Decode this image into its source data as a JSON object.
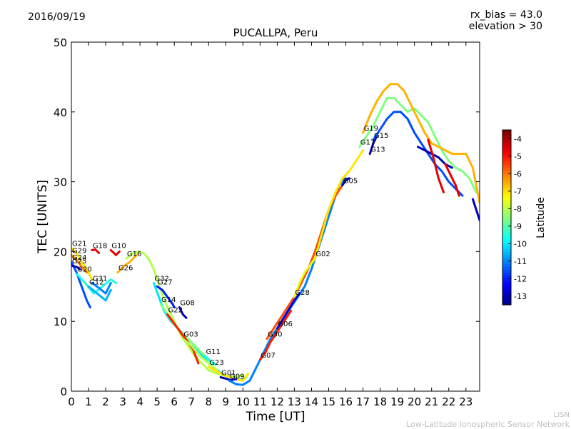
{
  "date": "2016/09/19",
  "header": {
    "rx_bias": "rx_bias = 43.0",
    "elevation": "elevation > 30"
  },
  "footer": {
    "line1": "LISN",
    "line2": "Low-Latitude Ionospheric Sensor Network"
  },
  "colorbar": {
    "label": "Latitude",
    "ticks": [
      -4,
      -5,
      -6,
      -7,
      -8,
      -9,
      -10,
      -11,
      -12,
      -13
    ],
    "range": [
      -13.5,
      -3.5
    ],
    "colormap": "jet"
  },
  "chart_data": {
    "type": "line",
    "title": "PUCALLPA, Peru",
    "xlabel": "Time [UT]",
    "ylabel": "TEC [UNITS]",
    "xlim": [
      0,
      23.8
    ],
    "ylim": [
      0,
      50
    ],
    "xticks": [
      0,
      1,
      2,
      3,
      4,
      5,
      6,
      7,
      8,
      9,
      10,
      11,
      12,
      13,
      14,
      15,
      16,
      17,
      18,
      19,
      20,
      21,
      22,
      23
    ],
    "yticks": [
      0,
      10,
      20,
      30,
      40,
      50
    ],
    "series": [
      {
        "name": "G21",
        "lat": -7.0,
        "x": [
          0.0,
          0.3,
          0.6,
          0.9,
          1.2
        ],
        "y": [
          20.5,
          19.8,
          18.5,
          17.5,
          16.0
        ]
      },
      {
        "name": "G29",
        "lat": -6.0,
        "x": [
          0.0,
          0.3,
          0.6,
          0.9
        ],
        "y": [
          19.5,
          18.8,
          17.8,
          17.0
        ]
      },
      {
        "name": "G24",
        "lat": -11.5,
        "x": [
          0.0,
          0.3,
          0.6,
          0.9,
          1.1
        ],
        "y": [
          18.5,
          17.0,
          15.0,
          13.0,
          12.0
        ]
      },
      {
        "name": "G25",
        "lat": -12.8,
        "x": [
          0.0,
          0.3,
          0.5
        ],
        "y": [
          18.0,
          17.8,
          17.5
        ]
      },
      {
        "name": "G20",
        "lat": -9.5,
        "x": [
          0.3,
          0.8,
          1.3,
          1.8,
          2.3,
          2.6
        ],
        "y": [
          16.8,
          15.5,
          14.0,
          15.0,
          16.0,
          15.5
        ]
      },
      {
        "name": "G12",
        "lat": -10.5,
        "x": [
          1.0,
          1.5,
          2.0,
          2.3
        ],
        "y": [
          15.0,
          14.0,
          13.0,
          14.5
        ]
      },
      {
        "name": "G31",
        "lat": -11.0,
        "x": [
          1.2,
          1.6,
          2.0,
          2.3
        ],
        "y": [
          15.5,
          14.8,
          14.0,
          15.5
        ]
      },
      {
        "name": "G18",
        "lat": -4.5,
        "x": [
          1.2,
          1.4,
          1.6
        ],
        "y": [
          20.2,
          20.3,
          19.8
        ]
      },
      {
        "name": "G10",
        "lat": -4.5,
        "x": [
          2.3,
          2.6,
          2.8
        ],
        "y": [
          20.2,
          19.5,
          20.0
        ]
      },
      {
        "name": "G26",
        "lat": -6.5,
        "x": [
          2.7,
          3.0,
          3.4,
          3.8
        ],
        "y": [
          17.0,
          17.8,
          18.5,
          19.5
        ]
      },
      {
        "name": "G16",
        "lat": -8.0,
        "x": [
          3.2,
          3.6,
          3.9,
          4.2,
          4.5,
          4.8,
          5.2,
          5.6,
          6.0,
          6.4,
          6.8,
          7.2,
          7.6,
          8.0,
          8.5,
          9.0,
          9.5,
          10.0
        ],
        "y": [
          19.0,
          19.8,
          20.0,
          19.8,
          19.0,
          17.5,
          14.5,
          12.0,
          10.0,
          8.0,
          6.5,
          5.0,
          4.0,
          3.0,
          2.5,
          2.2,
          2.0,
          2.3
        ]
      },
      {
        "name": "G27",
        "lat": -12.0,
        "x": [
          5.0,
          5.3,
          5.6,
          5.9,
          6.0
        ],
        "y": [
          15.0,
          14.5,
          13.5,
          12.5,
          12.0
        ]
      },
      {
        "name": "G32",
        "lat": -10.0,
        "x": [
          4.8,
          5.1,
          5.4,
          5.8,
          6.2,
          6.6,
          7.0,
          7.5,
          8.0,
          8.5,
          9.0,
          9.5,
          10.0,
          10.2
        ],
        "y": [
          15.5,
          13.5,
          11.5,
          10.0,
          9.0,
          8.0,
          7.0,
          5.5,
          4.0,
          3.0,
          2.2,
          1.8,
          1.6,
          2.0
        ]
      },
      {
        "name": "G08",
        "lat": -13.0,
        "x": [
          6.3,
          6.5,
          6.7
        ],
        "y": [
          12.0,
          11.0,
          10.5
        ]
      },
      {
        "name": "G14",
        "lat": -8.5,
        "x": [
          5.2,
          5.6,
          6.0,
          6.4,
          6.8,
          7.2,
          7.6,
          8.0,
          8.4
        ],
        "y": [
          12.5,
          11.0,
          9.5,
          8.5,
          7.5,
          6.5,
          5.5,
          4.5,
          3.8
        ]
      },
      {
        "name": "G22",
        "lat": -5.0,
        "x": [
          5.6,
          5.9,
          6.2,
          6.5,
          6.8,
          7.1,
          7.4
        ],
        "y": [
          11.0,
          10.0,
          9.0,
          8.0,
          7.0,
          6.0,
          4.0
        ]
      },
      {
        "name": "G03",
        "lat": -8.0,
        "x": [
          6.5,
          7.0,
          7.5,
          8.0,
          8.5
        ],
        "y": [
          7.5,
          6.5,
          5.0,
          4.0,
          3.0
        ]
      },
      {
        "name": "G11",
        "lat": -9.5,
        "x": [
          7.8,
          8.1,
          8.4
        ],
        "y": [
          5.0,
          4.3,
          3.8
        ]
      },
      {
        "name": "G23",
        "lat": -7.0,
        "x": [
          8.0,
          8.5,
          9.0,
          9.5,
          10.0,
          10.3
        ],
        "y": [
          3.5,
          2.8,
          2.2,
          1.8,
          1.5,
          2.5
        ]
      },
      {
        "name": "G01",
        "lat": -13.0,
        "x": [
          8.7,
          9.0,
          9.3,
          9.6
        ],
        "y": [
          2.0,
          1.8,
          1.6,
          1.7
        ]
      },
      {
        "name": "G09",
        "lat": -11.0,
        "x": [
          9.2,
          9.6,
          10.0,
          10.4,
          10.8,
          11.2,
          11.6,
          12.0,
          12.4,
          12.8,
          13.2,
          13.6,
          14.0,
          14.4,
          14.8,
          15.2,
          15.6,
          16.0
        ],
        "y": [
          1.5,
          1.0,
          0.9,
          1.5,
          3.5,
          5.5,
          7.5,
          9.0,
          10.5,
          12.0,
          13.5,
          15.0,
          17.5,
          20.5,
          23.5,
          26.5,
          29.5,
          30.5
        ]
      },
      {
        "name": "G07",
        "lat": -5.0,
        "x": [
          11.0,
          11.3,
          11.6,
          12.0,
          12.4,
          12.8
        ],
        "y": [
          4.5,
          5.5,
          7.0,
          8.5,
          10.0,
          11.5
        ]
      },
      {
        "name": "G30",
        "lat": -5.5,
        "x": [
          11.4,
          11.8,
          12.2,
          12.6,
          13.0,
          13.4,
          13.8,
          14.2,
          14.6,
          15.0,
          15.4,
          15.8
        ],
        "y": [
          7.5,
          9.0,
          10.5,
          12.0,
          13.5,
          15.5,
          17.5,
          20.0,
          23.0,
          26.0,
          28.0,
          29.5
        ]
      },
      {
        "name": "G06",
        "lat": -12.5,
        "x": [
          12.0,
          12.5,
          13.0,
          13.3
        ],
        "y": [
          9.0,
          11.0,
          13.0,
          14.0
        ]
      },
      {
        "name": "G28",
        "lat": -7.5,
        "x": [
          13.0,
          13.3,
          13.6,
          13.9,
          14.2
        ],
        "y": [
          13.5,
          15.5,
          17.0,
          18.0,
          19.0
        ]
      },
      {
        "name": "G02",
        "lat": -7.0,
        "x": [
          14.2,
          14.6,
          15.0,
          15.4,
          15.8,
          16.2,
          16.6,
          17.0
        ],
        "y": [
          19.0,
          22.5,
          26.0,
          28.5,
          30.5,
          31.5,
          33.0,
          34.5
        ]
      },
      {
        "name": "G05",
        "lat": -13.0,
        "x": [
          15.8,
          16.0,
          16.2
        ],
        "y": [
          29.5,
          30.2,
          30.5
        ]
      },
      {
        "name": "G17",
        "lat": -8.5,
        "x": [
          16.8,
          17.2,
          17.6,
          18.0,
          18.4,
          18.8,
          19.2,
          19.6,
          20.0,
          20.4,
          20.8,
          21.2,
          21.6,
          22.0,
          22.4,
          22.8,
          23.2,
          23.6
        ],
        "y": [
          35.0,
          36.5,
          38.0,
          40.0,
          42.0,
          42.0,
          41.0,
          40.0,
          40.5,
          39.5,
          38.5,
          36.5,
          34.5,
          33.0,
          32.0,
          31.5,
          30.5,
          28.5
        ]
      },
      {
        "name": "G19",
        "lat": -6.5,
        "x": [
          17.0,
          17.4,
          17.8,
          18.2,
          18.6,
          19.0,
          19.4,
          19.8,
          20.2,
          20.6,
          21.0,
          21.4,
          21.8,
          22.2,
          22.6,
          23.0,
          23.4,
          23.8
        ],
        "y": [
          37.0,
          39.5,
          41.5,
          43.0,
          44.0,
          44.0,
          43.0,
          41.0,
          39.0,
          37.0,
          35.5,
          35.0,
          34.5,
          34.0,
          34.0,
          34.0,
          32.0,
          27.0
        ]
      },
      {
        "name": "G13",
        "lat": -13.0,
        "x": [
          17.4,
          17.6,
          17.8
        ],
        "y": [
          34.0,
          35.5,
          36.5
        ]
      },
      {
        "name": "G15",
        "lat": -11.5,
        "x": [
          17.6,
          18.0,
          18.4,
          18.8,
          19.2,
          19.6,
          20.0,
          20.4,
          20.8,
          21.2,
          21.6,
          22.0,
          22.4,
          22.8
        ],
        "y": [
          36.0,
          37.5,
          39.0,
          40.0,
          40.0,
          39.0,
          37.0,
          35.5,
          34.0,
          32.5,
          31.5,
          30.0,
          29.0,
          28.0
        ]
      },
      {
        "name": "",
        "lat": -13.0,
        "x": [
          20.2,
          20.6,
          21.0,
          21.4,
          21.8,
          22.2
        ],
        "y": [
          35.0,
          34.5,
          34.0,
          33.5,
          32.5,
          32.0
        ]
      },
      {
        "name": "",
        "lat": -4.5,
        "x": [
          20.8,
          21.1,
          21.4,
          21.7
        ],
        "y": [
          36.0,
          33.5,
          30.5,
          28.5
        ]
      },
      {
        "name": "",
        "lat": -4.5,
        "x": [
          21.8,
          22.1,
          22.4,
          22.6
        ],
        "y": [
          32.5,
          31.0,
          29.5,
          28.0
        ]
      },
      {
        "name": "",
        "lat": -13.0,
        "x": [
          23.4,
          23.6,
          23.8
        ],
        "y": [
          27.5,
          26.0,
          24.5
        ]
      }
    ]
  }
}
